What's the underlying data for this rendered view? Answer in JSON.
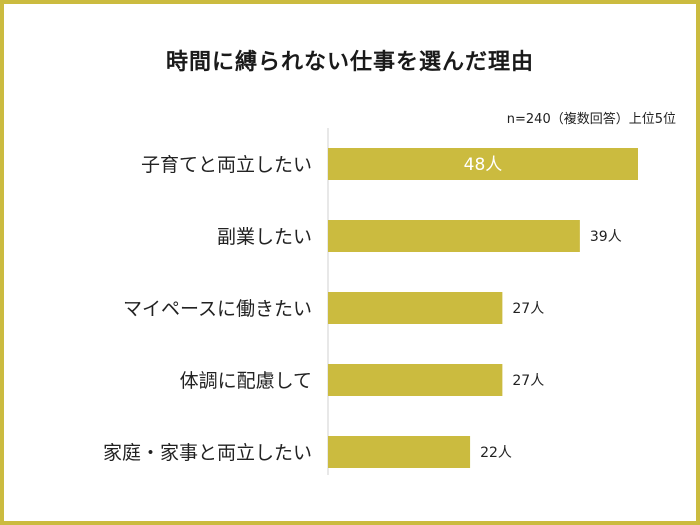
{
  "chart_data": {
    "type": "bar",
    "orientation": "horizontal",
    "title": "時間に縛られない仕事を選んだ理由",
    "note": "n=240（複数回答）上位5位",
    "categories": [
      "子育てと両立したい",
      "副業したい",
      "マイペースに働きたい",
      "体調に配慮して",
      "家庭・家事と両立したい"
    ],
    "values": [
      48,
      39,
      27,
      27,
      22
    ],
    "value_labels": [
      "48人",
      "39人",
      "27人",
      "27人",
      "22人"
    ],
    "unit": "人",
    "xlim": [
      0,
      48
    ],
    "grid": false,
    "bar_color": "#cbbb3f",
    "border_color": "#cbbb3f"
  }
}
